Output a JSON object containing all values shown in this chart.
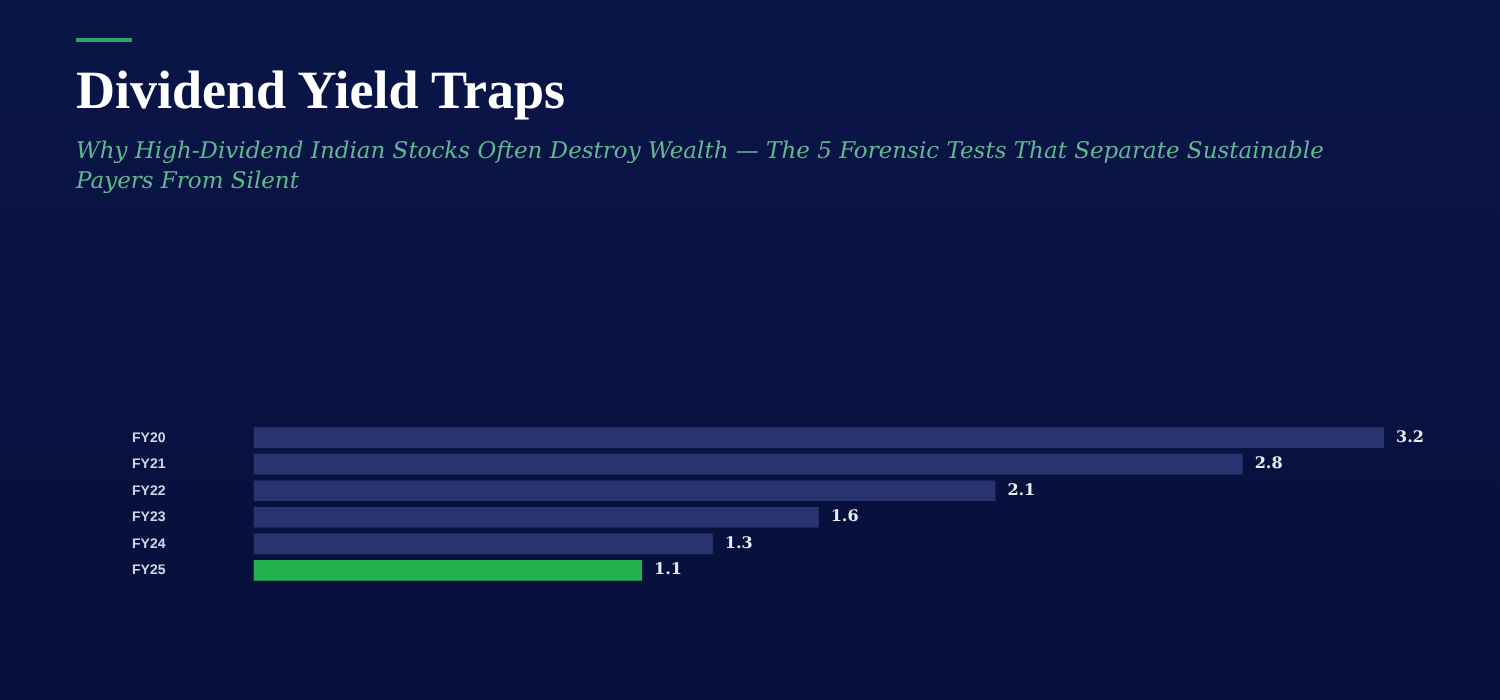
{
  "chart_data": {
    "type": "bar",
    "orientation": "horizontal",
    "title": "Dividend Yield Traps",
    "subtitle": "Why High-Dividend Indian Stocks Often Destroy Wealth — The 5 Forensic Tests That Separate Sustainable Payers From Silent",
    "categories": [
      "FY20",
      "FY21",
      "FY22",
      "FY23",
      "FY24",
      "FY25"
    ],
    "values": [
      3.2,
      2.8,
      2.1,
      1.6,
      1.3,
      1.1
    ],
    "colors": [
      "#283470",
      "#283470",
      "#283470",
      "#283470",
      "#283470",
      "#22b14c"
    ],
    "data_labels": true,
    "tick_labels": "y",
    "grid": false,
    "legend": false
  }
}
